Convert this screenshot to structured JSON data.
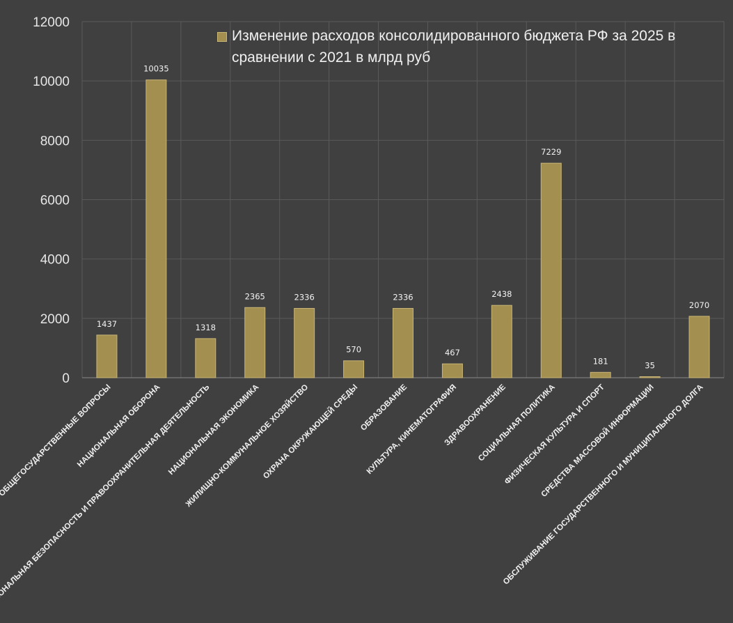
{
  "chart_data": {
    "type": "bar",
    "title": "",
    "xlabel": "",
    "ylabel": "",
    "ylim": [
      0,
      12000
    ],
    "yticks": [
      0,
      2000,
      4000,
      6000,
      8000,
      10000,
      12000
    ],
    "grid": {
      "horizontal": true,
      "vertical": true
    },
    "legend_position": "top-right",
    "categories": [
      "ОБЩЕГОСУДАРСТВЕННЫЕ ВОПРОСЫ",
      "НАЦИОНАЛЬНАЯ ОБОРОНА",
      "НАЦИОНАЛЬНАЯ БЕЗОПАСНОСТЬ И ПРАВООХРАНИТЕЛЬНАЯ ДЕЯТЕЛЬНОСТЬ",
      "НАЦИОНАЛЬНАЯ ЭКОНОМИКА",
      "ЖИЛИЩНО-КОММУНАЛЬНОЕ ХОЗЯЙСТВО",
      "ОХРАНА ОКРУЖАЮЩЕЙ СРЕДЫ",
      "ОБРАЗОВАНИЕ",
      "КУЛЬТУРА, КИНЕМАТОГРАФИЯ",
      "ЗДРАВООХРАНЕНИЕ",
      "СОЦИАЛЬНАЯ ПОЛИТИКА",
      "ФИЗИЧЕСКАЯ КУЛЬТУРА И СПОРТ",
      "СРЕДСТВА МАССОВОЙ ИНФОРМАЦИИ",
      "ОБСЛУЖИВАНИЕ ГОСУДАРСТВЕННОГО И МУНИЦИПАЛЬНОГО ДОЛГА"
    ],
    "series": [
      {
        "name": "Изменение расходов консолидированного бюджета РФ за 2025 в сравнении с 2021 в млрд руб",
        "color": "#a38f4f",
        "values": [
          1437,
          10035,
          1318,
          2365,
          2336,
          570,
          2336,
          467,
          2438,
          7229,
          181,
          35,
          2070
        ]
      }
    ],
    "colors": {
      "background": "#404040",
      "bar": "#a38f4f",
      "bar_edge": "#c9b576",
      "grid": "#5a5a5a",
      "text": "#e6e6e6"
    }
  }
}
